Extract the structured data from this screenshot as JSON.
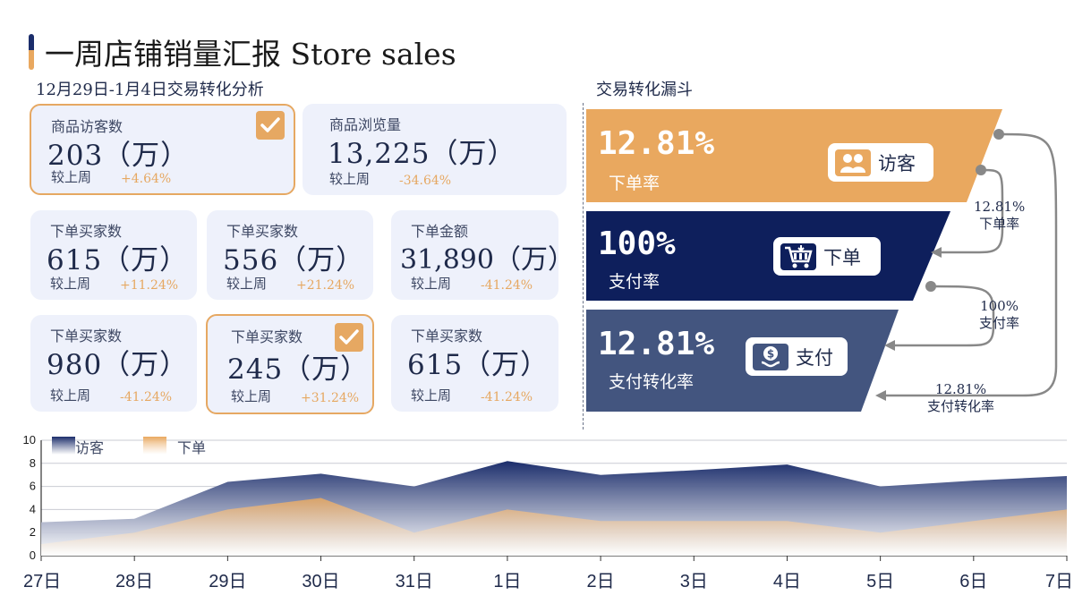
{
  "header": {
    "title": "一周店铺销量汇报 Store sales",
    "left_subtitle": "12月29日-1月4日交易转化分析",
    "right_subtitle": "交易转化漏斗"
  },
  "cards": [
    {
      "label": "商品访客数",
      "value": "203（万）",
      "compare": "较上周",
      "change": "+4.64%",
      "highlight": true
    },
    {
      "label": "商品浏览量",
      "value": "13,225（万）",
      "compare": "较上周",
      "change": "-34.64%",
      "highlight": false
    },
    {
      "label": "下单买家数",
      "value": "615（万）",
      "compare": "较上周",
      "change": "+11.24%",
      "highlight": false
    },
    {
      "label": "下单买家数",
      "value": "556（万）",
      "compare": "较上周",
      "change": "+21.24%",
      "highlight": false
    },
    {
      "label": "下单金额",
      "value": "31,890（万）",
      "compare": "较上周",
      "change": "-41.24%",
      "highlight": false
    },
    {
      "label": "下单买家数",
      "value": "980（万）",
      "compare": "较上周",
      "change": "-41.24%",
      "highlight": false
    },
    {
      "label": "下单买家数",
      "value": "245（万）",
      "compare": "较上周",
      "change": "+31.24%",
      "highlight": true
    },
    {
      "label": "下单买家数",
      "value": "615（万）",
      "compare": "较上周",
      "change": "-41.24%",
      "highlight": false
    }
  ],
  "funnel": {
    "colors": [
      "#e9a85f",
      "#0e1f5c",
      "#43557f"
    ],
    "stages": [
      {
        "rate": "12.81%",
        "rate_label": "下单率",
        "tag": "访客",
        "icon": "visitors-icon"
      },
      {
        "rate": "100%",
        "rate_label": "支付率",
        "tag": "下单",
        "icon": "shopping-cart-icon"
      },
      {
        "rate": "12.81%",
        "rate_label": "支付转化率",
        "tag": "支付",
        "icon": "payment-icon"
      }
    ],
    "side_rates": [
      {
        "value": "12.81%",
        "label": "下单率"
      },
      {
        "value": "100%",
        "label": "支付率"
      },
      {
        "value": "12.81%",
        "label": "支付转化率"
      }
    ]
  },
  "chart_data": {
    "type": "area",
    "categories": [
      "27日",
      "28日",
      "29日",
      "30日",
      "31日",
      "1日",
      "2日",
      "3日",
      "4日",
      "5日",
      "6日",
      "7日"
    ],
    "series": [
      {
        "name": "访客",
        "color": "#1b2d6b",
        "values": [
          2.9,
          3.2,
          6.4,
          7.1,
          6.0,
          8.2,
          7.0,
          7.4,
          7.9,
          6.0,
          6.5,
          6.9
        ]
      },
      {
        "name": "下单",
        "color": "#e9a85f",
        "values": [
          1.0,
          2.0,
          4.0,
          5.0,
          2.0,
          4.0,
          3.0,
          3.0,
          3.0,
          2.0,
          3.0,
          4.0
        ]
      }
    ],
    "yticks": [
      "0",
      "2",
      "4",
      "6",
      "8",
      "10"
    ],
    "ylim": [
      0,
      10
    ],
    "grid": true,
    "legend": "top-left"
  }
}
